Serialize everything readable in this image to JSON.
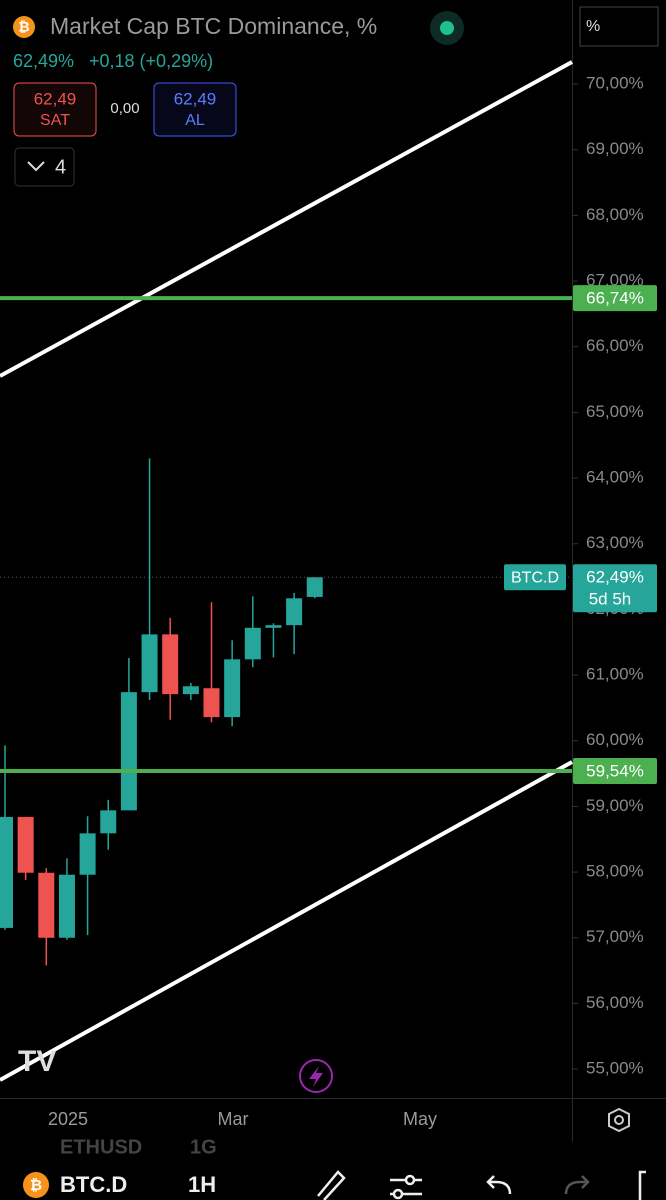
{
  "header": {
    "title": "Market Cap BTC Dominance, %",
    "price": "62,49%",
    "change": "+0,18 (+0,29%)",
    "sell": {
      "price": "62,49",
      "label": "SAT"
    },
    "spread": "0,00",
    "buy": {
      "price": "62,49",
      "label": "AL"
    },
    "indicators_count": "4",
    "scale_button": "%"
  },
  "chart_data": {
    "type": "candlestick",
    "series": [
      {
        "name": "BTC.D",
        "open": [
          57.15,
          58.84,
          57.99,
          57.0,
          57.96,
          58.59,
          58.94,
          60.74,
          61.62,
          60.71,
          60.8,
          60.36,
          61.24,
          61.72,
          61.76,
          62.19
        ],
        "high": [
          59.93,
          58.84,
          58.06,
          58.21,
          58.85,
          59.1,
          61.26,
          64.3,
          61.87,
          60.88,
          62.11,
          61.53,
          62.2,
          61.79,
          62.25,
          62.49
        ],
        "low": [
          57.12,
          57.88,
          56.58,
          56.97,
          57.04,
          58.34,
          58.94,
          60.62,
          60.32,
          60.62,
          60.28,
          60.22,
          61.12,
          61.27,
          61.32,
          62.17
        ],
        "close": [
          58.84,
          57.99,
          57.0,
          57.96,
          58.59,
          58.94,
          60.74,
          61.62,
          60.71,
          60.83,
          60.36,
          61.24,
          61.72,
          61.76,
          62.17,
          62.49
        ]
      }
    ],
    "up_color": "#26a69a",
    "down_color": "#ef5350",
    "ylim": [
      54.56,
      71.28
    ],
    "yticks": [
      {
        "value": 55,
        "label": "55,00%"
      },
      {
        "value": 56,
        "label": "56,00%"
      },
      {
        "value": 57,
        "label": "57,00%"
      },
      {
        "value": 58,
        "label": "58,00%"
      },
      {
        "value": 59,
        "label": "59,00%"
      },
      {
        "value": 60,
        "label": "60,00%"
      },
      {
        "value": 61,
        "label": "61,00%"
      },
      {
        "value": 62,
        "label": "62,00%"
      },
      {
        "value": 63,
        "label": "63,00%"
      },
      {
        "value": 64,
        "label": "64,00%"
      },
      {
        "value": 65,
        "label": "65,00%"
      },
      {
        "value": 66,
        "label": "66,00%"
      },
      {
        "value": 67,
        "label": "67,00%"
      },
      {
        "value": 68,
        "label": "68,00%"
      },
      {
        "value": 69,
        "label": "69,00%"
      },
      {
        "value": 70,
        "label": "70,00%"
      }
    ],
    "hlines": [
      {
        "value": 66.74,
        "label": "66,74%",
        "color": "#4caf50"
      },
      {
        "value": 59.54,
        "label": "59,54%",
        "color": "#4caf50"
      }
    ],
    "last": {
      "value": 62.49,
      "label": "62,49%",
      "countdown": "5d 5h"
    },
    "x_labels": [
      "2025",
      "Mar",
      "May"
    ]
  },
  "footer": {
    "prev_symbol": "ETHUSD",
    "prev_interval": "1G",
    "symbol": "BTC.D",
    "interval": "1H"
  }
}
